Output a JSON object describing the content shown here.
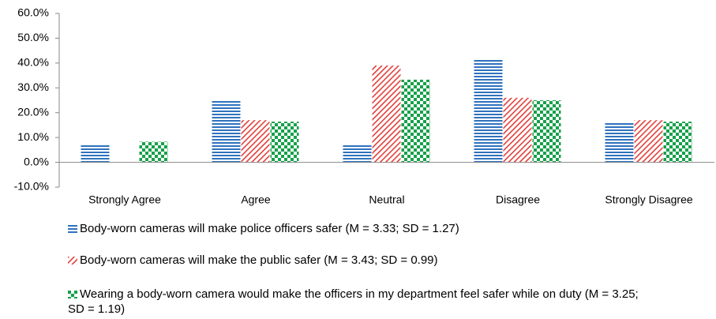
{
  "chart_data": {
    "type": "bar",
    "categories": [
      "Strongly Agree",
      "Agree",
      "Neutral",
      "Disagree",
      "Strongly Disagree"
    ],
    "series": [
      {
        "name": "Body-worn cameras will make police officers safer (M = 3.33; SD = 1.27)",
        "color": "#2f72bd",
        "pattern": "horizontal",
        "values": [
          6.9,
          25,
          6.9,
          41.7,
          16.1
        ]
      },
      {
        "name": "Body-worn cameras will make the public safer (M = 3.43; SD = 0.99)",
        "color": "#e0403b",
        "pattern": "diagonal",
        "values": [
          0,
          17,
          39,
          26,
          17
        ]
      },
      {
        "name": "Wearing a body-worn camera would make the officers in my department feel safer while on duty (M = 3.25; SD = 1.19)",
        "color": "#16a04a",
        "pattern": "checker",
        "values": [
          8.3,
          16.4,
          33.3,
          25,
          16.4
        ]
      }
    ],
    "ylim": [
      -10,
      60
    ],
    "yticks": [
      {
        "value": -10,
        "label": "-10.0%"
      },
      {
        "value": 0,
        "label": "0.0%"
      },
      {
        "value": 10,
        "label": "10.0%"
      },
      {
        "value": 20,
        "label": "20.0%"
      },
      {
        "value": 30,
        "label": "30.0%"
      },
      {
        "value": 40,
        "label": "40.0%"
      },
      {
        "value": 50,
        "label": "50.0%"
      },
      {
        "value": 60,
        "label": "60.0%"
      }
    ],
    "grid": false
  }
}
